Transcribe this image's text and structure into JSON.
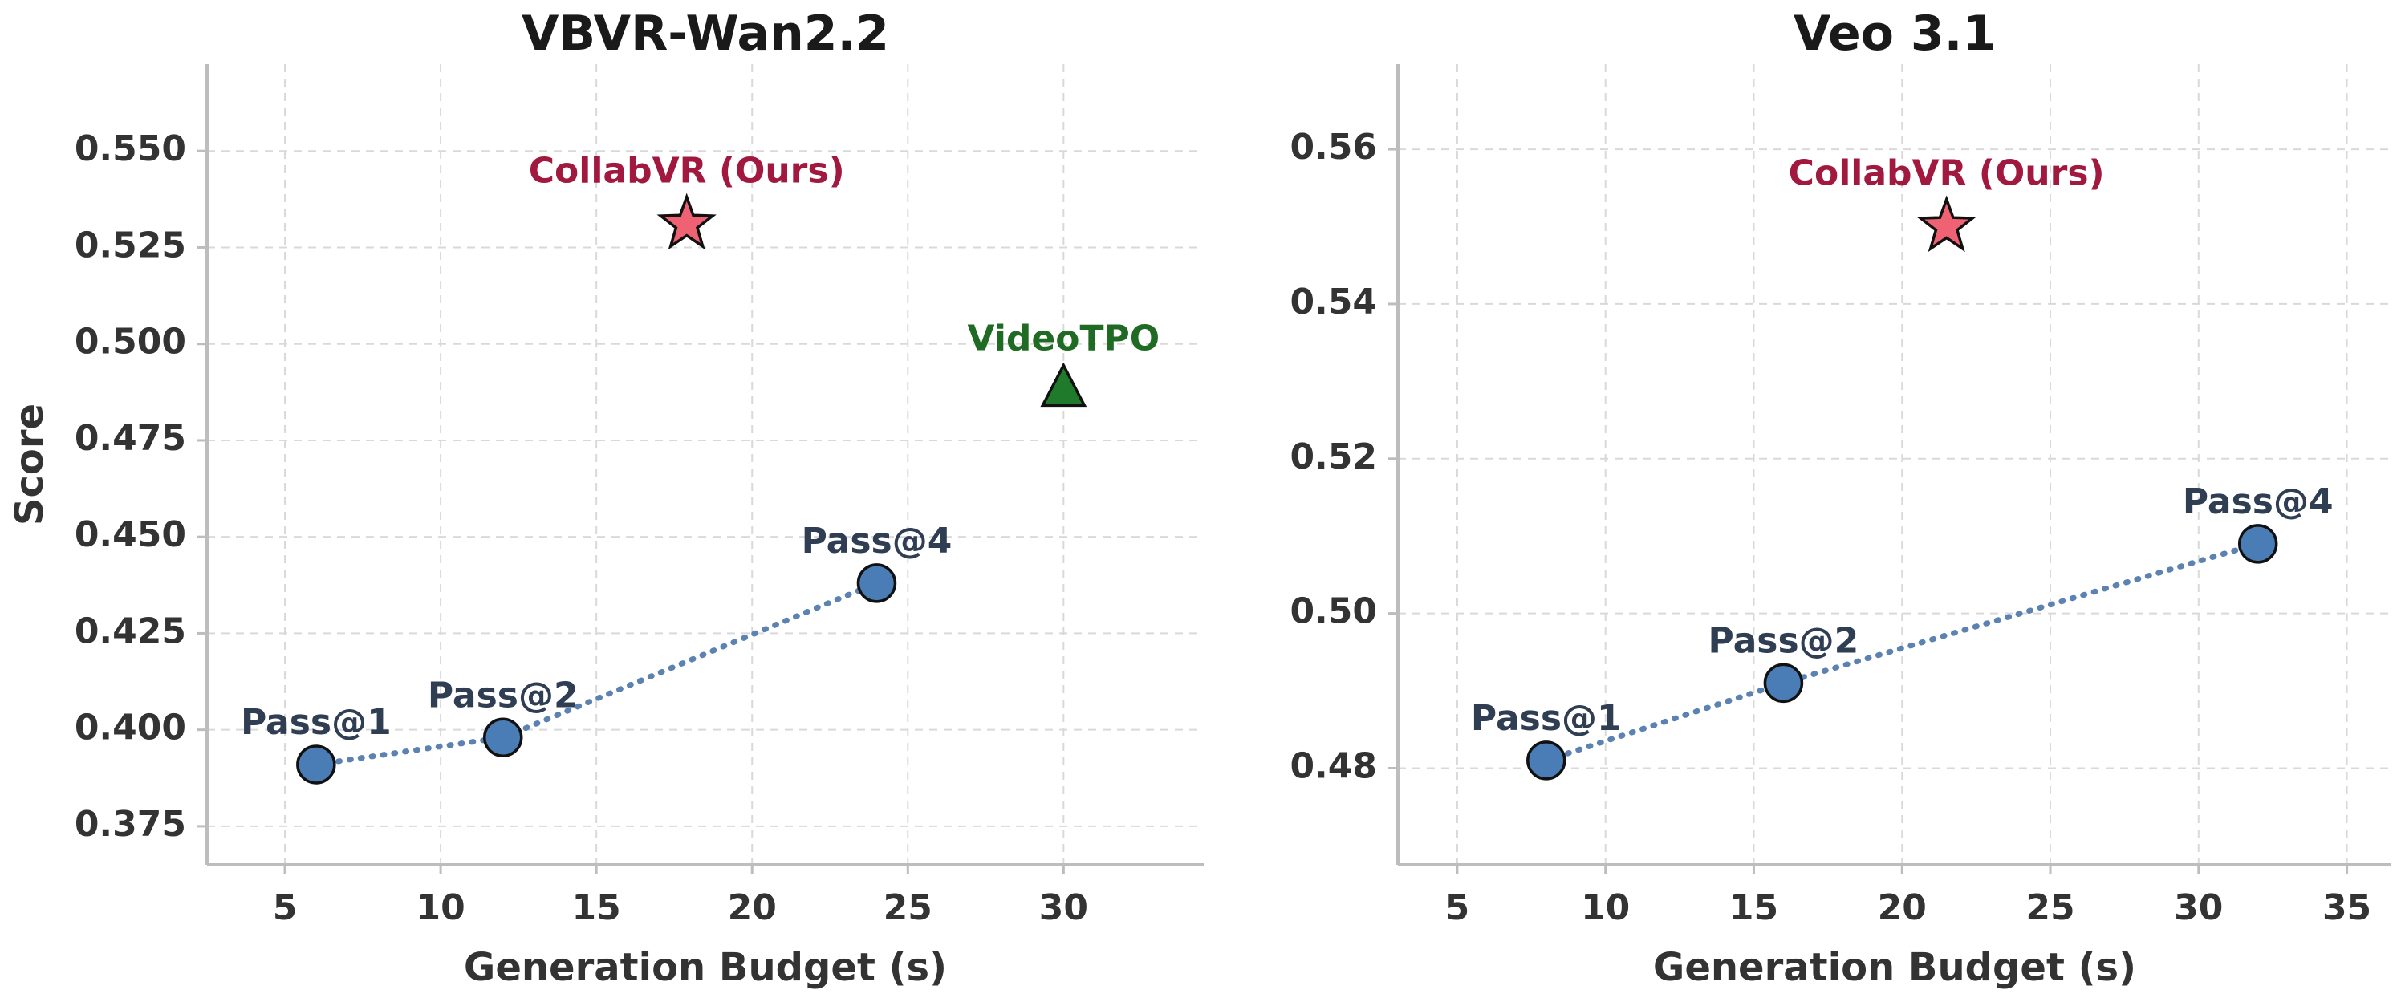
{
  "colors": {
    "series_line": "#5b82b0",
    "series_marker": "#4a7db5",
    "series_label": "#2f3e52",
    "collabvr": "#ee6273",
    "collabvr_label": "#a1193f",
    "videotpo": "#1f7a2c",
    "videotpo_label": "#1f6b24",
    "marker_edge": "#111111"
  },
  "icons": {
    "collabvr_marker": "star",
    "videotpo_marker": "triangle",
    "pass_marker": "circle"
  },
  "chart_data": [
    {
      "type": "scatter",
      "title": "VBVR-Wan2.2",
      "xlabel": "Generation Budget (s)",
      "ylabel": "Score",
      "xlim": [
        2.5,
        34.5
      ],
      "ylim": [
        0.365,
        0.5725
      ],
      "xticks": [
        5,
        10,
        15,
        20,
        25,
        30
      ],
      "yticks": [
        0.375,
        0.4,
        0.425,
        0.45,
        0.475,
        0.5,
        0.525,
        0.55
      ],
      "ytick_labels": [
        "0.375",
        "0.400",
        "0.425",
        "0.450",
        "0.475",
        "0.500",
        "0.525",
        "0.550"
      ],
      "grid": true,
      "series": [
        {
          "labels": [
            "Pass@1",
            "Pass@2",
            "Pass@4"
          ],
          "x": [
            6,
            12,
            24
          ],
          "y": [
            0.391,
            0.398,
            0.438
          ],
          "line_style": "dotted",
          "marker": "circle"
        }
      ],
      "points": [
        {
          "label": "CollabVR (Ours)",
          "x": 17.9,
          "y": 0.531,
          "marker": "star"
        },
        {
          "label": "VideoTPO",
          "x": 30,
          "y": 0.488,
          "marker": "triangle"
        }
      ]
    },
    {
      "type": "scatter",
      "title": "Veo 3.1",
      "xlabel": "Generation Budget (s)",
      "ylabel": "",
      "xlim": [
        3,
        36.5
      ],
      "ylim": [
        0.4675,
        0.571
      ],
      "xticks": [
        5,
        10,
        15,
        20,
        25,
        30,
        35
      ],
      "yticks": [
        0.48,
        0.5,
        0.52,
        0.54,
        0.56
      ],
      "ytick_labels": [
        "0.48",
        "0.50",
        "0.52",
        "0.54",
        "0.56"
      ],
      "grid": true,
      "series": [
        {
          "labels": [
            "Pass@1",
            "Pass@2",
            "Pass@4"
          ],
          "x": [
            8,
            16,
            32
          ],
          "y": [
            0.481,
            0.491,
            0.509
          ],
          "line_style": "dotted",
          "marker": "circle"
        }
      ],
      "points": [
        {
          "label": "CollabVR (Ours)",
          "x": 21.5,
          "y": 0.55,
          "marker": "star"
        }
      ]
    }
  ]
}
